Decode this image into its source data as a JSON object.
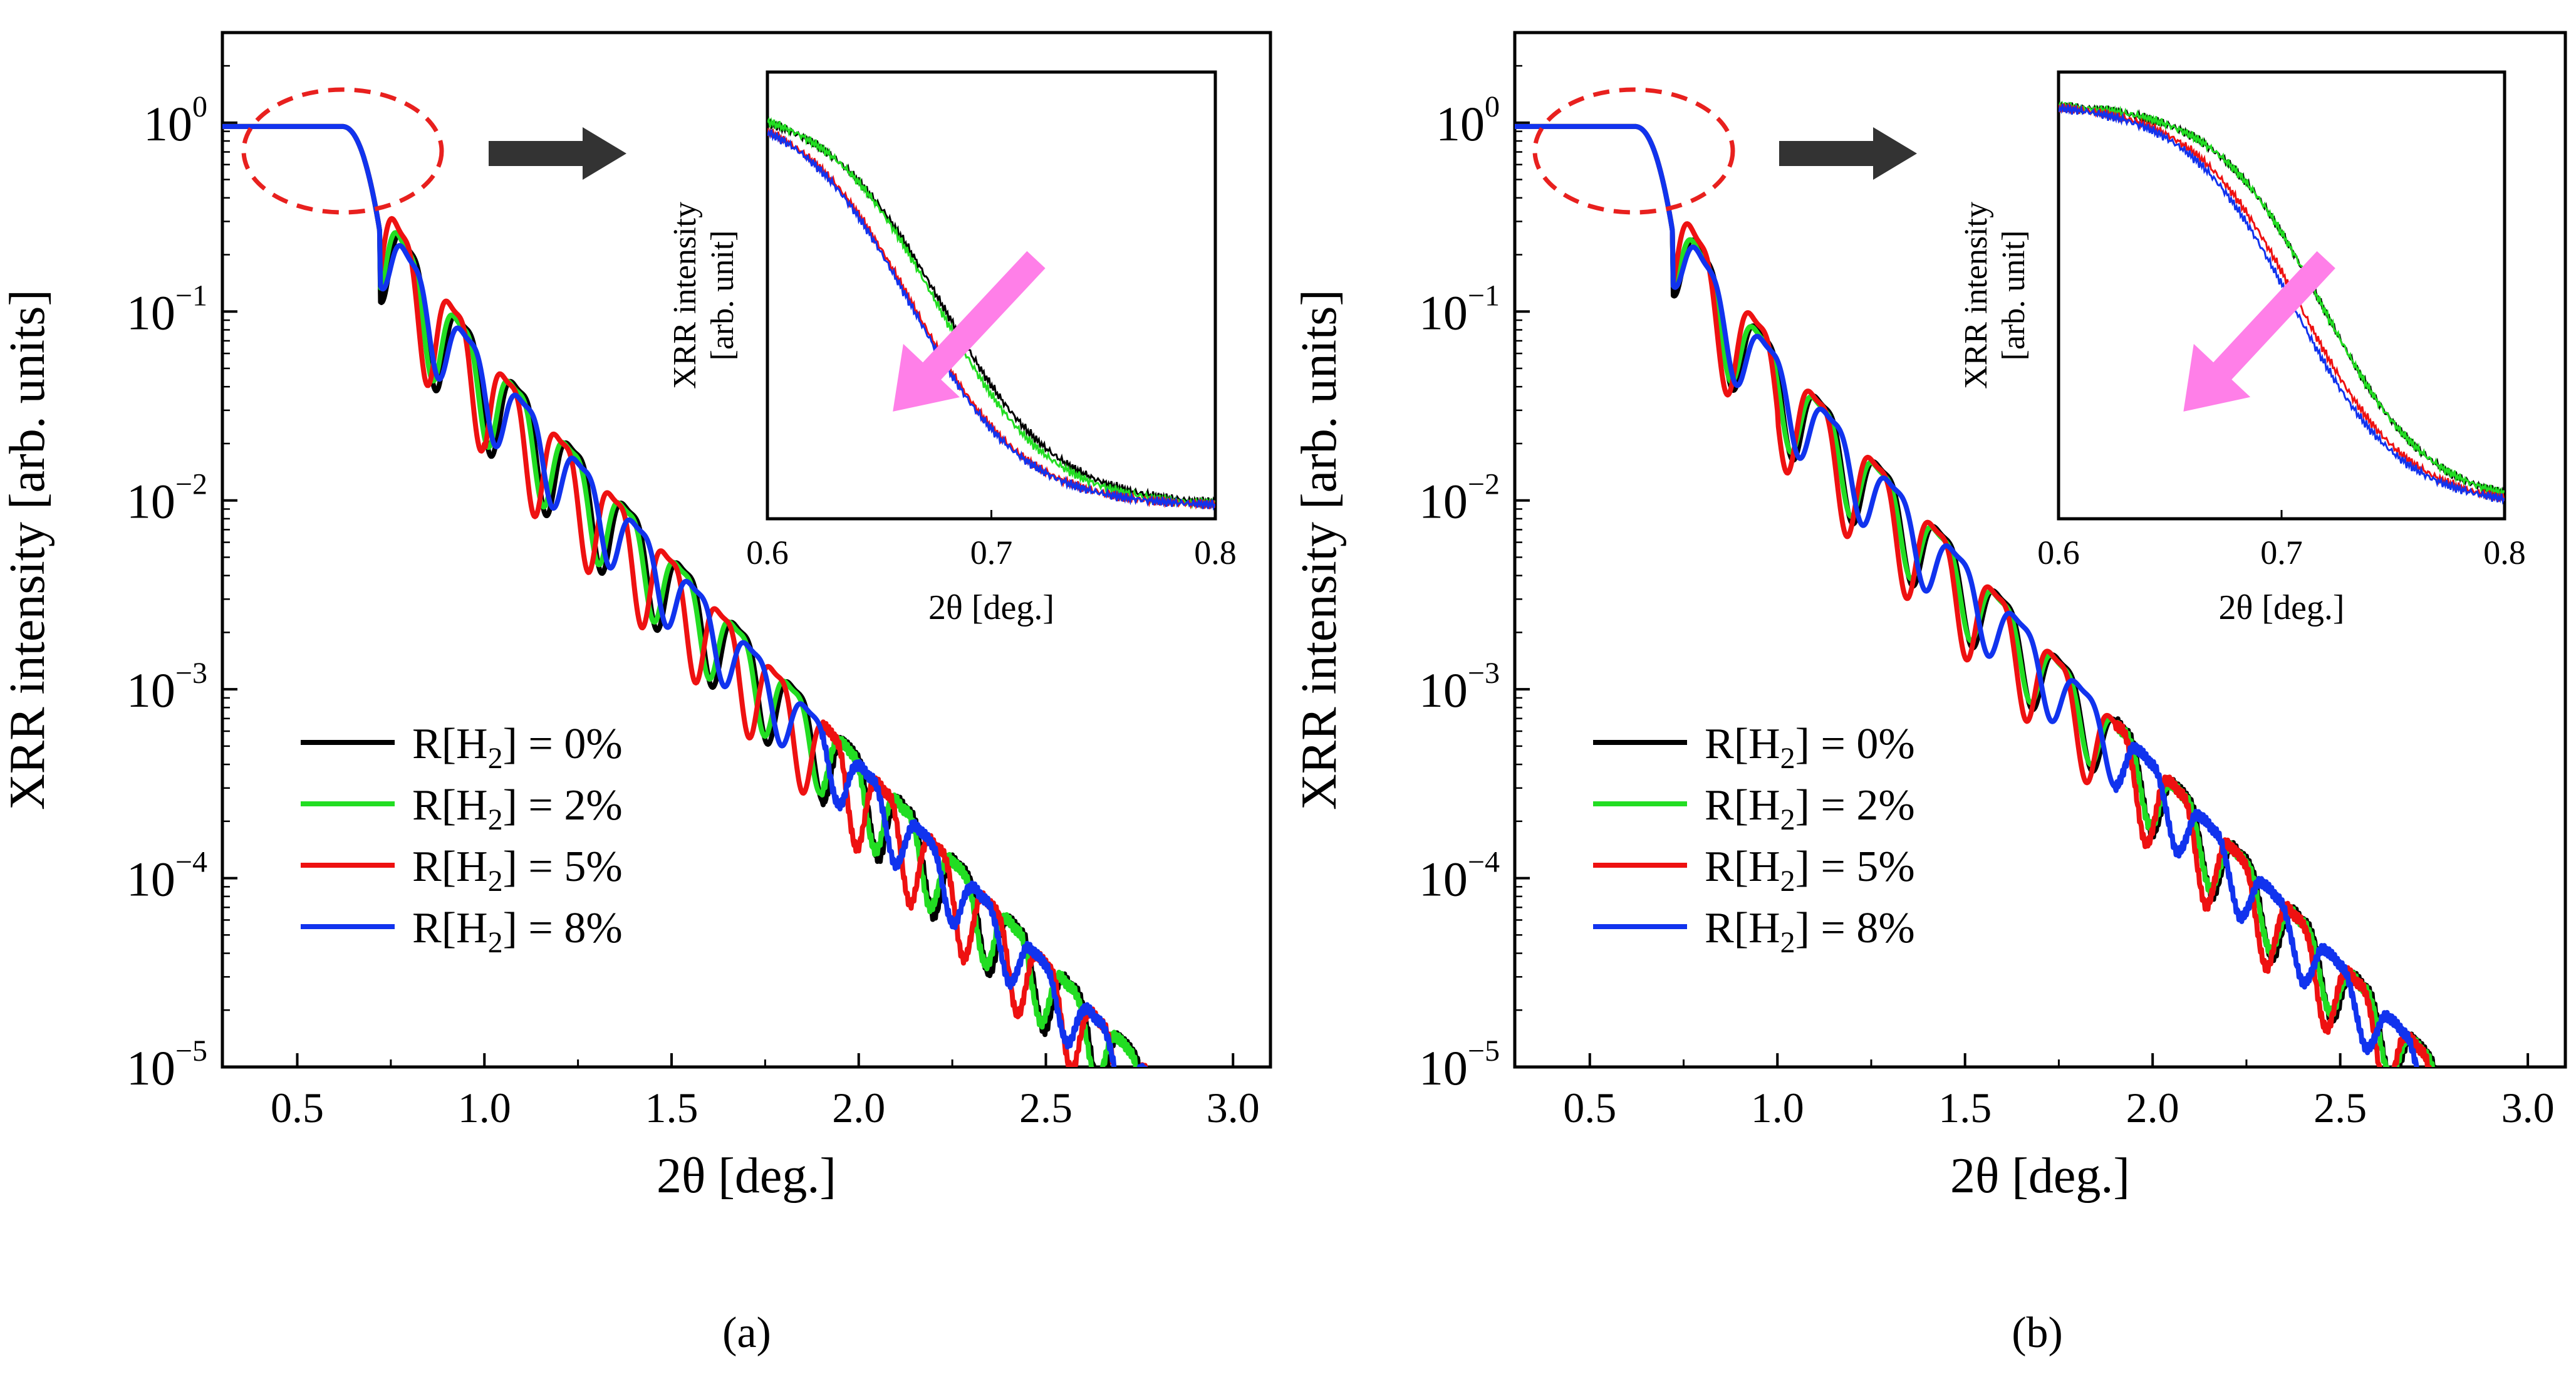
{
  "chart_data": [
    {
      "panel": "a",
      "type": "line",
      "yscale": "log",
      "xlabel": "2θ [deg.]",
      "ylabel": "XRR intensity [arb. units]",
      "xlim": [
        0.3,
        3.1
      ],
      "ylim": [
        1e-05,
        3
      ],
      "xticks": [
        0.5,
        1.0,
        1.5,
        2.0,
        2.5,
        3.0
      ],
      "xtick_labels": [
        "0.5",
        "1.0",
        "1.5",
        "2.0",
        "2.5",
        "3.0"
      ],
      "ytick_labels": [
        {
          "base": "10",
          "exp": "0"
        },
        {
          "base": "10",
          "exp": "−1"
        },
        {
          "base": "10",
          "exp": "−2"
        },
        {
          "base": "10",
          "exp": "−3"
        },
        {
          "base": "10",
          "exp": "−4"
        },
        {
          "base": "10",
          "exp": "−5"
        }
      ],
      "caption": "(a)",
      "critical_angle": 0.72,
      "series": [
        {
          "name": "R[H₂] = 0%",
          "label_main": "R[H",
          "label_sub": "2",
          "label_tail": "] = 0%",
          "color": "#000000",
          "period": 0.1477,
          "first_max": 0.795,
          "decay": 3.32,
          "amp": 0.55
        },
        {
          "name": "R[H₂] = 2%",
          "label_main": "R[H",
          "label_sub": "2",
          "label_tail": "] = 2%",
          "color": "#22dd22",
          "period": 0.1477,
          "first_max": 0.787,
          "decay": 3.32,
          "amp": 0.5
        },
        {
          "name": "R[H₂] = 5%",
          "label_main": "R[H",
          "label_sub": "2",
          "label_tail": "] = 5%",
          "color": "#ee1111",
          "period": 0.1433,
          "first_max": 0.775,
          "decay": 3.36,
          "amp": 0.6
        },
        {
          "name": "R[H₂] = 8%",
          "label_main": "R[H",
          "label_sub": "2",
          "label_tail": "] = 8%",
          "color": "#1133ee",
          "period": 0.1526,
          "first_max": 0.8,
          "decay": 3.34,
          "amp": 0.42
        }
      ],
      "inset": {
        "xlabel": "2θ [deg.]",
        "ylabel": [
          "XRR intensity",
          "[arb. unit]"
        ],
        "xlim": [
          0.6,
          0.8
        ],
        "xticks": [
          0.6,
          0.7,
          0.8
        ],
        "xtick_labels": [
          "0.6",
          "0.7",
          "0.8"
        ],
        "centers": [
          0.678,
          0.676,
          0.665,
          0.664
        ],
        "widths": [
          0.026,
          0.025,
          0.025,
          0.025
        ],
        "arrow_color": "#ff7fe8"
      }
    },
    {
      "panel": "b",
      "type": "line",
      "yscale": "log",
      "xlabel": "2θ [deg.]",
      "ylabel": "XRR intensity [arb. units]",
      "xlim": [
        0.3,
        3.1
      ],
      "ylim": [
        1e-05,
        3
      ],
      "xticks": [
        0.5,
        1.0,
        1.5,
        2.0,
        2.5,
        3.0
      ],
      "xtick_labels": [
        "0.5",
        "1.0",
        "1.5",
        "2.0",
        "2.5",
        "3.0"
      ],
      "ytick_labels": [
        {
          "base": "10",
          "exp": "0"
        },
        {
          "base": "10",
          "exp": "−1"
        },
        {
          "base": "10",
          "exp": "−2"
        },
        {
          "base": "10",
          "exp": "−3"
        },
        {
          "base": "10",
          "exp": "−4"
        },
        {
          "base": "10",
          "exp": "−5"
        }
      ],
      "caption": "(b)",
      "critical_angle": 0.72,
      "series": [
        {
          "name": "R[H₂] = 0%",
          "label_main": "R[H",
          "label_sub": "2",
          "label_tail": "] = 0%",
          "color": "#000000",
          "period": 0.1596,
          "first_max": 0.8,
          "decay": 3.28,
          "amp": 0.5
        },
        {
          "name": "R[H₂] = 2%",
          "label_main": "R[H",
          "label_sub": "2",
          "label_tail": "] = 2%",
          "color": "#22dd22",
          "period": 0.1596,
          "first_max": 0.795,
          "decay": 3.3,
          "amp": 0.45
        },
        {
          "name": "R[H₂] = 5%",
          "label_main": "R[H",
          "label_sub": "2",
          "label_tail": "] = 5%",
          "color": "#ee1111",
          "period": 0.1596,
          "first_max": 0.785,
          "decay": 3.45,
          "amp": 0.6
        },
        {
          "name": "R[H₂] = 8%",
          "label_main": "R[H",
          "label_sub": "2",
          "label_tail": "] = 8%",
          "color": "#1133ee",
          "period": 0.168,
          "first_max": 0.805,
          "decay": 3.3,
          "amp": 0.42
        }
      ],
      "inset": {
        "xlabel": "2θ [deg.]",
        "ylabel": [
          "XRR intensity",
          "[arb. unit]"
        ],
        "xlim": [
          0.6,
          0.8
        ],
        "xticks": [
          0.6,
          0.7,
          0.8
        ],
        "xtick_labels": [
          "0.6",
          "0.7",
          "0.8"
        ],
        "centers": [
          0.718,
          0.718,
          0.708,
          0.705
        ],
        "widths": [
          0.024,
          0.024,
          0.024,
          0.024
        ],
        "arrow_color": "#ff7fe8"
      }
    }
  ]
}
